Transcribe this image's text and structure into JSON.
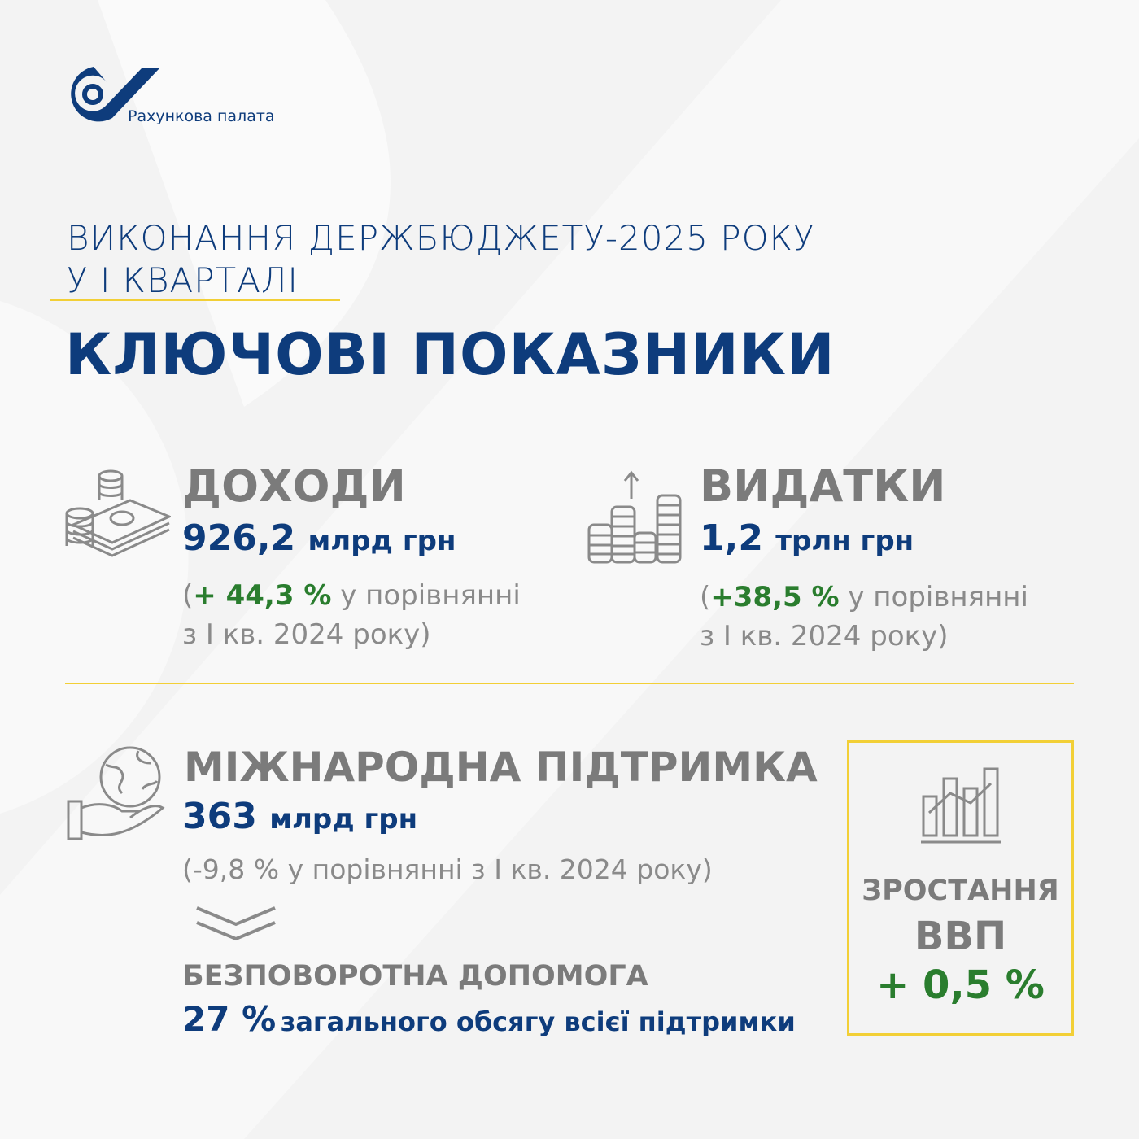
{
  "logo": {
    "name": "Рахункова палата"
  },
  "title": {
    "line1": "ВИКОНАННЯ ДЕРЖБЮДЖЕТУ-2025 РОКУ",
    "line2": "У І КВАРТАЛІ",
    "main": "КЛЮЧОВІ ПОКАЗНИКИ"
  },
  "revenue": {
    "heading": "ДОХОДИ",
    "value": "926,2",
    "unit": "млрд грн",
    "open": "(",
    "change": "+ 44,3 %",
    "text1": " у порівнянні",
    "text2": "з І кв. 2024 року)",
    "icon": "money-coins-icon"
  },
  "expenses": {
    "heading": "ВИДАТКИ",
    "value": "1,2",
    "unit": "трлн грн",
    "open": "(",
    "change": "+38,5 %",
    "text1": " у порівнянні",
    "text2": "з І кв. 2024 року)",
    "icon": "coins-growth-icon"
  },
  "support": {
    "heading": "МІЖНАРОДНА ПІДТРИМКА",
    "value": "363",
    "unit": "млрд грн",
    "comparison": "(-9,8 % у порівнянні з І кв. 2024 року)",
    "icon": "globe-hand-icon"
  },
  "grant": {
    "heading": "БЕЗПОВОРОТНА ДОПОМОГА",
    "value": "27 %",
    "text": "загального обсягу всієї підтримки"
  },
  "gdp": {
    "label1": "ЗРОСТАННЯ",
    "label2": "ВВП",
    "value": "+ 0,5 %",
    "icon": "bar-chart-icon"
  },
  "colors": {
    "blue": "#0e3c7c",
    "gray": "#7b7b7b",
    "green": "#2a7d2e",
    "yellow": "#f2cf36"
  }
}
